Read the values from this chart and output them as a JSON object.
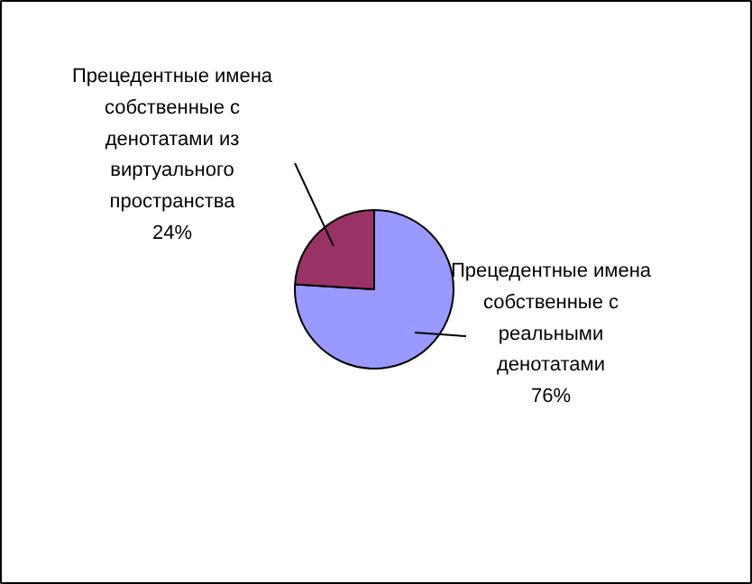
{
  "chart_data": {
    "type": "pie",
    "categories": [
      "Прецедентные имена собственные с реальными денотатами",
      "Прецедентные имена собственные с денотатами из виртуального пространства"
    ],
    "values": [
      76,
      24
    ],
    "colors": [
      "#9999ff",
      "#993366"
    ],
    "value_labels": [
      "76%",
      "24%"
    ]
  }
}
